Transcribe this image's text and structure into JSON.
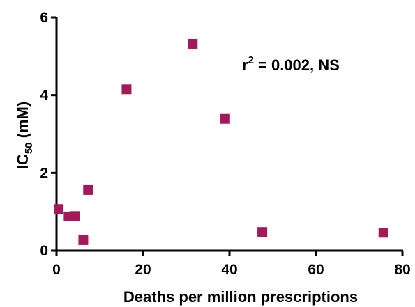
{
  "chart_data": {
    "type": "scatter",
    "xlabel": "Deaths per million prescriptions",
    "ylabel": {
      "base": "IC",
      "sub": "50",
      "rest": " (mM)"
    },
    "xlim": [
      0,
      80
    ],
    "ylim": [
      0,
      6
    ],
    "x_ticks": [
      0,
      20,
      40,
      60,
      80
    ],
    "y_ticks": [
      0,
      2,
      4,
      6
    ],
    "grid": false,
    "marker_color": "#A3195B",
    "annotation": {
      "pre": "r",
      "sup": "2",
      "post": " = 0.002, NS"
    },
    "points": [
      {
        "x": 0.5,
        "y": 1.07
      },
      {
        "x": 2.8,
        "y": 0.88
      },
      {
        "x": 4.3,
        "y": 0.89
      },
      {
        "x": 6.2,
        "y": 0.27
      },
      {
        "x": 7.3,
        "y": 1.56
      },
      {
        "x": 16.2,
        "y": 4.15
      },
      {
        "x": 31.5,
        "y": 5.32
      },
      {
        "x": 39.0,
        "y": 3.39
      },
      {
        "x": 47.6,
        "y": 0.48
      },
      {
        "x": 75.6,
        "y": 0.46
      }
    ]
  }
}
